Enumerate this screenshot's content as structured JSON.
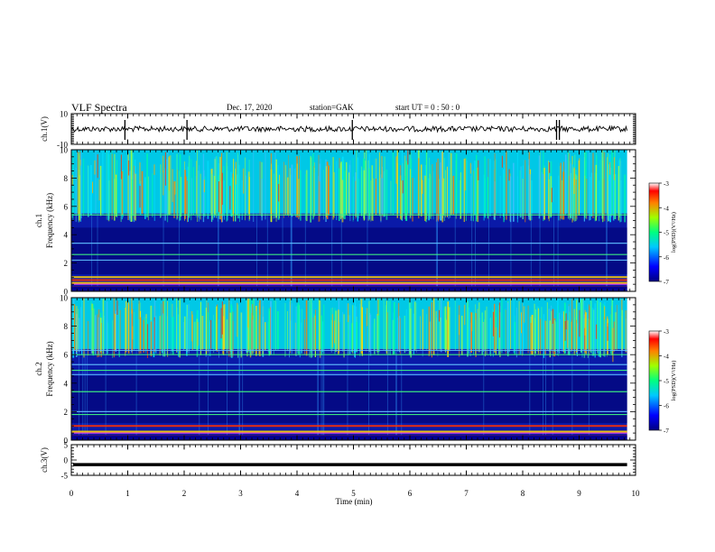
{
  "header": {
    "title": "VLF Spectra",
    "date": "Dec. 17, 2020",
    "station": "station=GAK",
    "start": "start UT = 0 : 50 : 0"
  },
  "chart_data": [
    {
      "type": "line",
      "panel": "ch1-waveform",
      "ylabel": "ch.1(V)",
      "ylim": [
        -10,
        10
      ],
      "yticks": [
        10,
        -10
      ],
      "xlim": [
        0,
        10
      ],
      "baseline": 0,
      "spikes_at_min": [
        0.95,
        2.05,
        4.98,
        8.6,
        8.65
      ],
      "color": "#000000"
    },
    {
      "type": "heatmap",
      "panel": "ch1-spectrogram",
      "ylabel": "ch.1\nFrequency (kHz)",
      "ylim": [
        0,
        10
      ],
      "yticks": [
        0,
        2,
        4,
        6,
        8,
        10
      ],
      "xlim": [
        0,
        10
      ],
      "data_end_min": 9.85,
      "colorbar": {
        "label": "log(PSD)(V²/Hz)",
        "range": [
          -7,
          -3
        ],
        "ticks": [
          "-3",
          "-4",
          "-5",
          "-6",
          "-7"
        ]
      },
      "bands_khz": [
        0.3,
        0.6,
        0.8,
        1.0,
        2.2,
        2.6,
        3.4,
        5.4
      ],
      "background_cutoff_khz": 5.5
    },
    {
      "type": "heatmap",
      "panel": "ch2-spectrogram",
      "ylabel": "ch.2\nFrequency (kHz)",
      "ylim": [
        0,
        10
      ],
      "yticks": [
        0,
        2,
        4,
        6,
        8,
        10
      ],
      "xlim": [
        0,
        10
      ],
      "data_end_min": 9.85,
      "colorbar": {
        "label": "log(PSD)(V²/Hz)",
        "range": [
          -7,
          -3
        ],
        "ticks": [
          "-3",
          "-4",
          "-5",
          "-6",
          "-7"
        ]
      },
      "bands_khz": [
        0.3,
        0.6,
        1.0,
        1.8,
        2.0,
        3.4,
        4.6,
        4.9,
        5.3,
        6.0,
        6.3
      ],
      "background_cutoff_khz": 6.4
    },
    {
      "type": "line",
      "panel": "ch3-waveform",
      "ylabel": "ch.3(V)",
      "ylim": [
        -5,
        5
      ],
      "yticks": [
        5,
        0,
        -5
      ],
      "xlim": [
        0,
        10
      ],
      "xticks": [
        0,
        1,
        2,
        3,
        4,
        5,
        6,
        7,
        8,
        9,
        10
      ],
      "xlabel": "Time (min)",
      "level": -1.5,
      "color": "#000000"
    }
  ]
}
